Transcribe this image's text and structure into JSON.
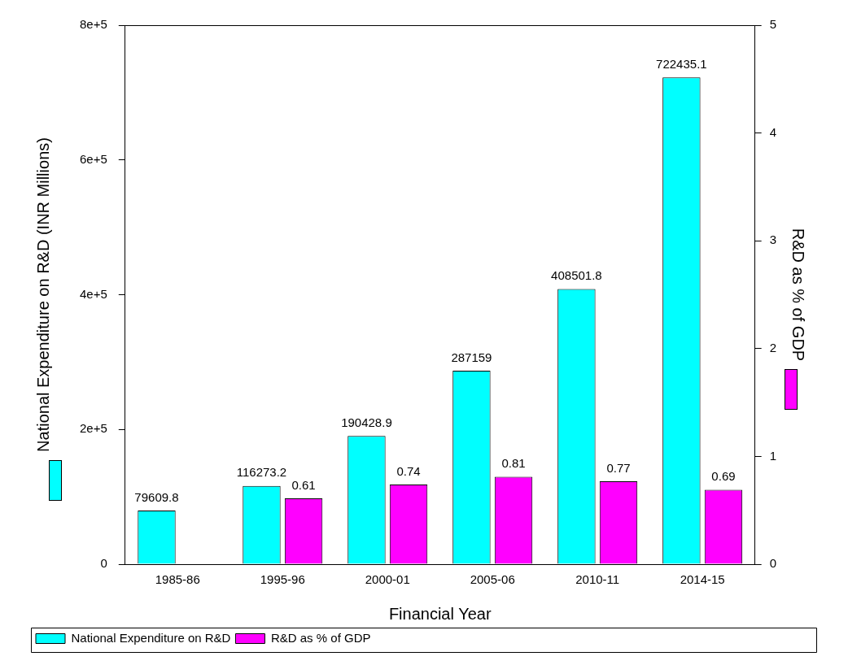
{
  "chart_data": {
    "type": "bar",
    "xlabel": "Financial Year",
    "ylabel": "National Expenditure on R&D (INR Millions)",
    "y2label": "R&D as % of GDP",
    "categories": [
      "1985-86",
      "1995-96",
      "2000-01",
      "2005-06",
      "2010-11",
      "2014-15"
    ],
    "series": [
      {
        "name": "National Expenditure on R&D",
        "color": "#00ffff",
        "values": [
          79609.8,
          116273.2,
          190428.9,
          287159,
          408501.8,
          722435.1
        ]
      },
      {
        "name": "R&D as % of GDP",
        "color": "#ff00ff",
        "axis": "y2",
        "values": [
          null,
          0.61,
          0.74,
          0.81,
          0.77,
          0.69
        ]
      }
    ],
    "ylim": [
      0,
      800000
    ],
    "yticks": [
      {
        "value": 0,
        "label": "0"
      },
      {
        "value": 200000,
        "label": "2e+5"
      },
      {
        "value": 400000,
        "label": "4e+5"
      },
      {
        "value": 600000,
        "label": "6e+5"
      },
      {
        "value": 800000,
        "label": "8e+5"
      }
    ],
    "y2lim": [
      0,
      5
    ],
    "y2ticks": [
      0,
      1,
      2,
      3,
      4,
      5
    ],
    "data_labels": true,
    "grid": false,
    "legend": "bottom left"
  }
}
